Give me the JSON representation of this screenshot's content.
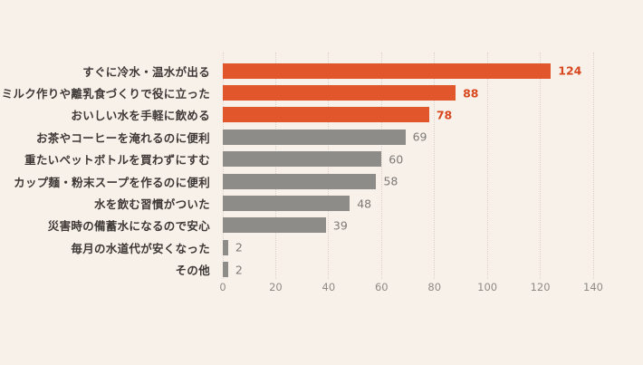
{
  "chart_data": {
    "type": "bar",
    "orientation": "horizontal",
    "title": "",
    "xlabel": "",
    "ylabel": "",
    "categories": [
      "すぐに冷水・温水が出る",
      "ミルク作りや離乳食づくりで役に立った",
      "おいしい水を手軽に飲める",
      "お茶やコーヒーを淹れるのに便利",
      "重たいペットボトルを買わずにすむ",
      "カップ麺・粉末スープを作るのに便利",
      "水を飲む習慣がついた",
      "災害時の備蓄水になるので安心",
      "毎月の水道代が安くなった",
      "その他"
    ],
    "values": [
      124,
      88,
      78,
      69,
      60,
      58,
      48,
      39,
      2,
      2
    ],
    "highlighted": [
      true,
      true,
      true,
      false,
      false,
      false,
      false,
      false,
      false,
      false
    ],
    "xlim": [
      0,
      140
    ],
    "x_ticks": [
      0,
      20,
      40,
      60,
      80,
      100,
      120,
      140
    ],
    "grid": "vertical-dotted",
    "legend": "none",
    "colors": {
      "highlight_bar": "#e2562c",
      "default_bar": "#8e8c89",
      "highlight_value_text": "#d8471d",
      "default_value_text": "#7c7975",
      "background": "#f8f1ea",
      "gridline": "#ddd2c9",
      "category_text": "#3e3937",
      "tick_text": "#8e8a85"
    }
  }
}
